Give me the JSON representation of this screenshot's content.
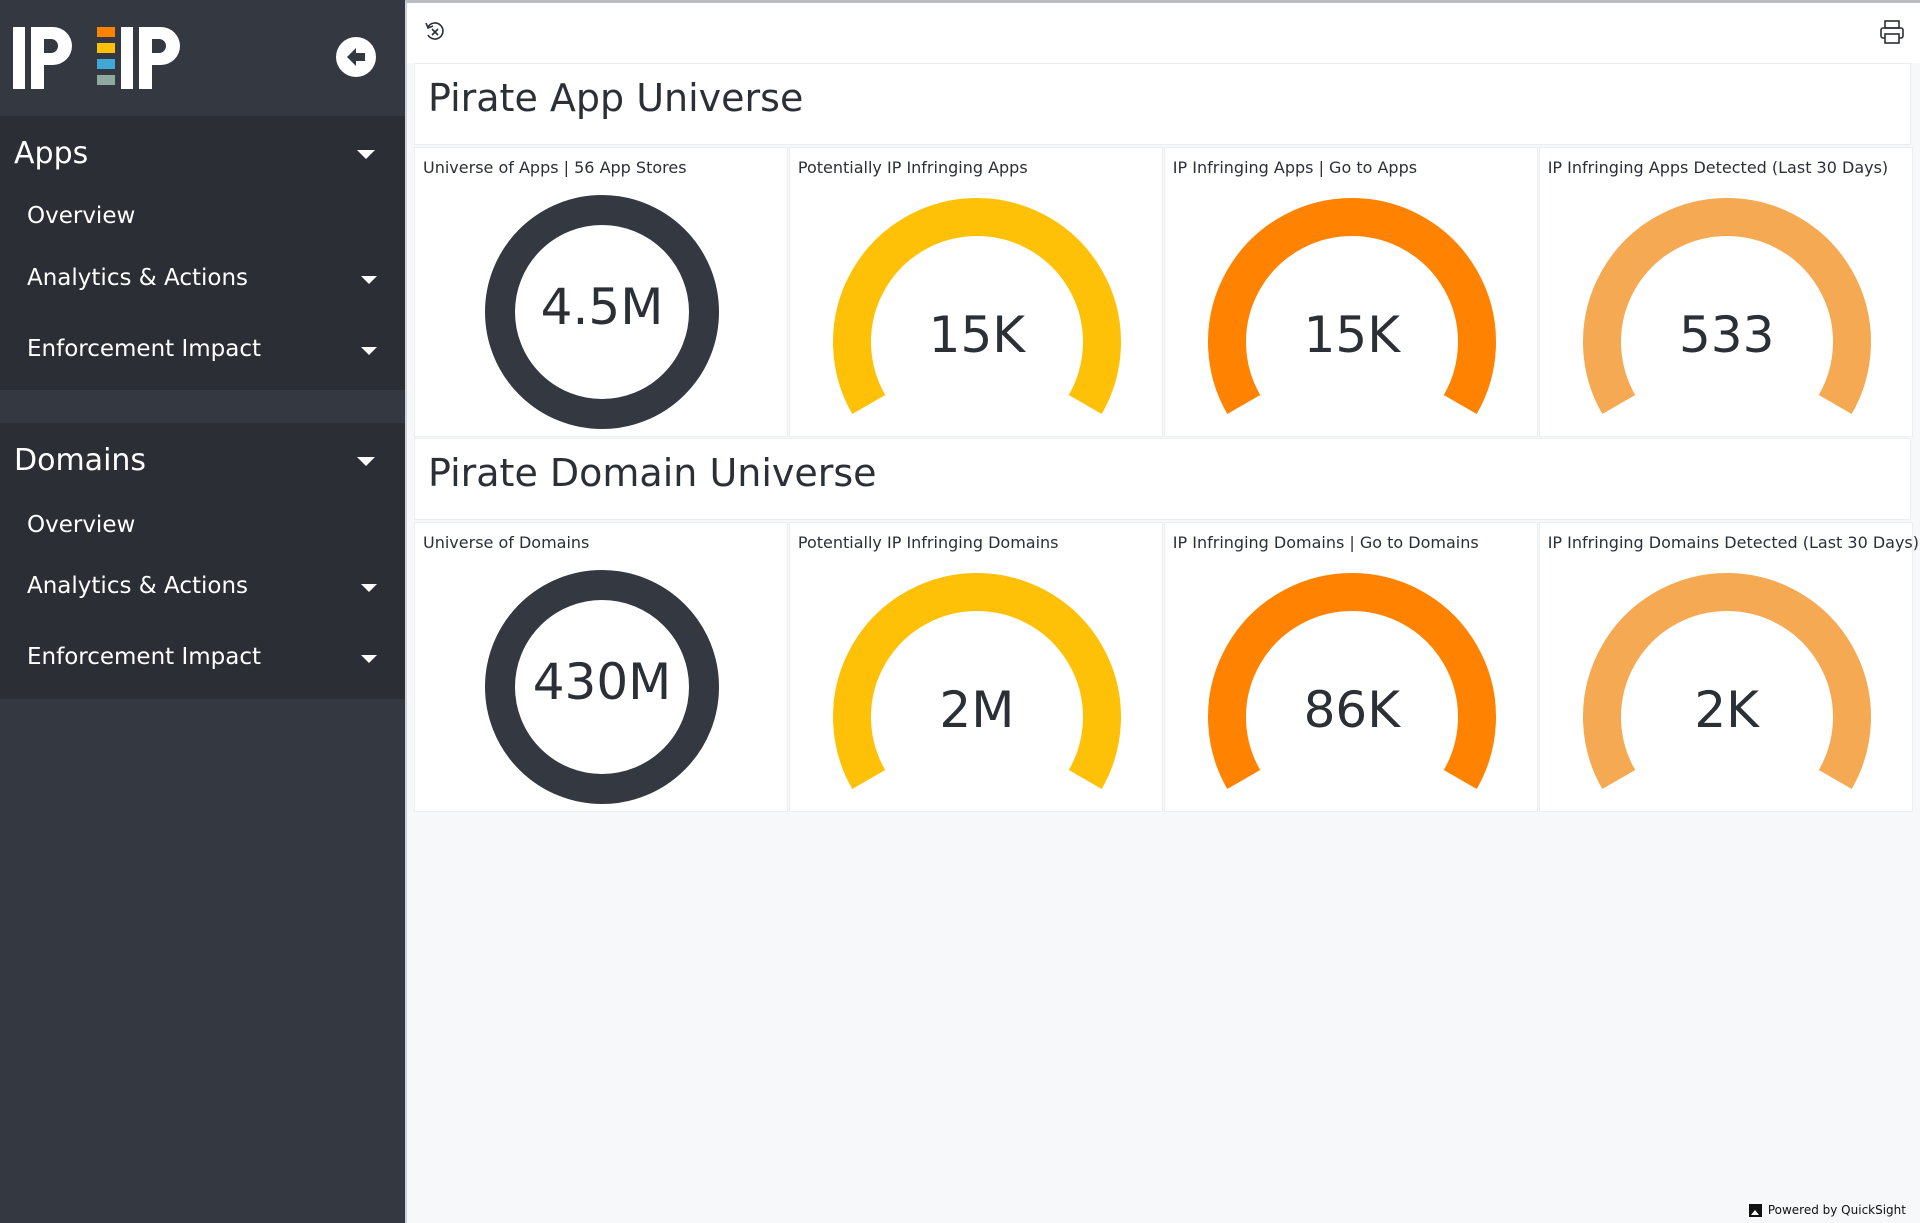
{
  "sidebar": {
    "logo_text": "IPIP",
    "sections": [
      {
        "label": "Apps",
        "items": [
          "Overview",
          "Analytics & Actions",
          "Enforcement Impact"
        ]
      },
      {
        "label": "Domains",
        "items": [
          "Overview",
          "Analytics & Actions",
          "Enforcement Impact"
        ]
      }
    ]
  },
  "toolbar": {
    "reset_icon": "reset-icon",
    "print_icon": "print-icon"
  },
  "sections": [
    {
      "title": "Pirate App Universe",
      "cards": [
        {
          "title": "Universe of Apps | 56 App Stores",
          "value": "4.5M",
          "type": "donut",
          "color": "#343841"
        },
        {
          "title": "Potentially IP Infringing Apps",
          "value": "15K",
          "type": "gauge",
          "color": "#ffc107"
        },
        {
          "title": "IP Infringing Apps | Go to Apps",
          "value": "15K",
          "type": "gauge",
          "color": "#ff8200"
        },
        {
          "title": "IP Infringing Apps Detected (Last 30 Days)",
          "value": "533",
          "type": "gauge",
          "color": "#f5a952"
        }
      ]
    },
    {
      "title": "Pirate Domain Universe",
      "cards": [
        {
          "title": "Universe of Domains",
          "value": "430M",
          "type": "donut",
          "color": "#343841"
        },
        {
          "title": "Potentially IP Infringing Domains",
          "value": "2M",
          "type": "gauge",
          "color": "#ffc107"
        },
        {
          "title": "IP Infringing Domains | Go to Domains",
          "value": "86K",
          "type": "gauge",
          "color": "#ff8200"
        },
        {
          "title": "IP Infringing Domains Detected (Last 30 Days)",
          "value": "2K",
          "type": "gauge",
          "color": "#f5a952"
        }
      ]
    }
  ],
  "footer": {
    "powered_by": "Powered by QuickSight"
  }
}
